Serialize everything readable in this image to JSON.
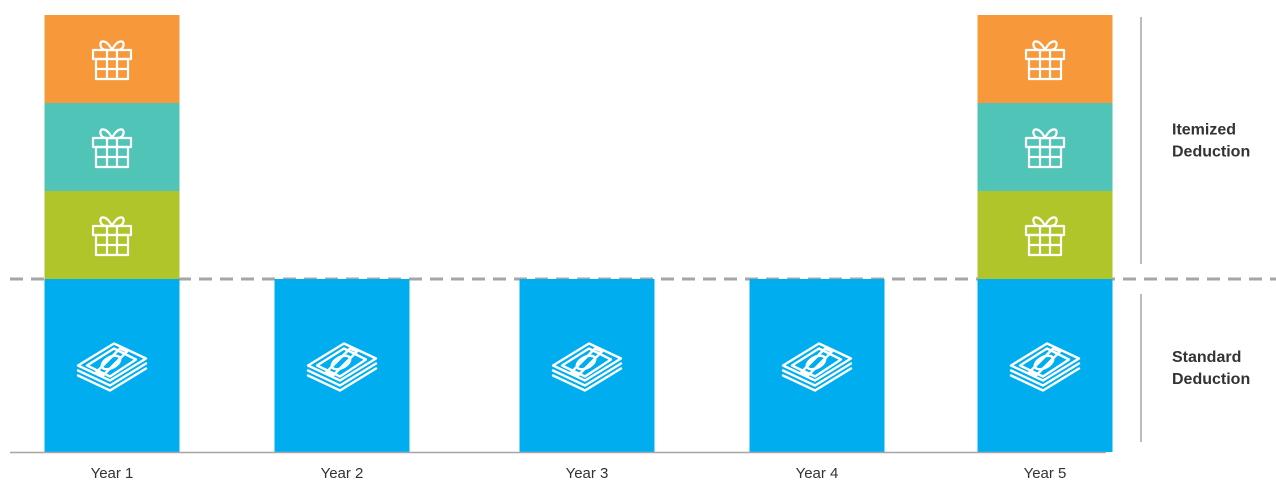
{
  "chart_data": {
    "type": "bar",
    "stacked": true,
    "categories": [
      "Year 1",
      "Year 2",
      "Year 3",
      "Year 4",
      "Year 5"
    ],
    "series": [
      {
        "values": [
          1,
          1,
          1,
          1,
          1
        ],
        "color": "#00AEEF",
        "icon": "money-stack-icon"
      },
      {
        "values": [
          1,
          0,
          0,
          0,
          1
        ],
        "color": "#AFC52A",
        "icon": "gift-icon"
      },
      {
        "values": [
          1,
          0,
          0,
          0,
          1
        ],
        "color": "#50C4B7",
        "icon": "gift-icon"
      },
      {
        "values": [
          1,
          0,
          0,
          0,
          1
        ],
        "color": "#F7993A",
        "icon": "gift-icon"
      }
    ],
    "threshold_line": {
      "value": 1,
      "style": "dashed",
      "color": "#A6A6A6"
    },
    "brackets": [
      {
        "label_lines": [
          "Itemized",
          "Deduction"
        ],
        "range": [
          1,
          4
        ]
      },
      {
        "label_lines": [
          "Standard",
          "Deduction"
        ],
        "range": [
          0,
          1
        ]
      }
    ],
    "legend": "none",
    "grid": false
  }
}
